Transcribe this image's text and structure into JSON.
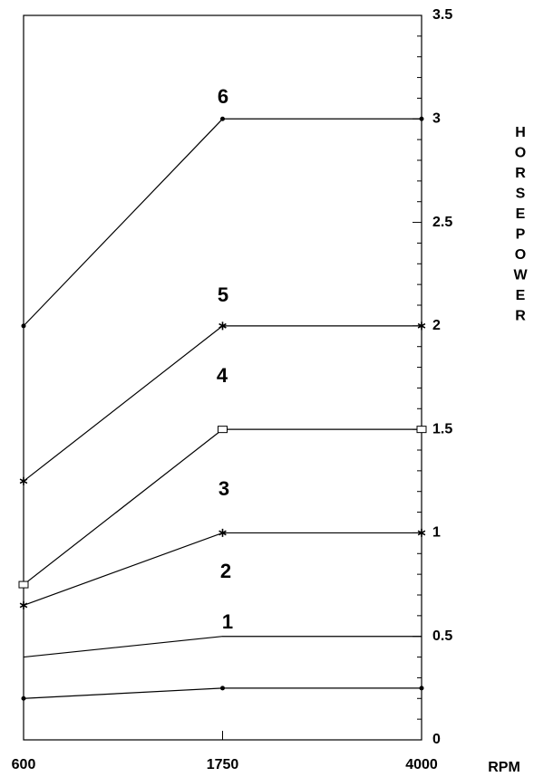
{
  "chart_data": {
    "type": "line",
    "x_label": "RPM",
    "y_label": "HORSEPOWER",
    "categories": [
      "600",
      "1750",
      "4000"
    ],
    "ylim": [
      0,
      3.5
    ],
    "yticks": [
      0,
      0.5,
      1,
      1.5,
      2,
      2.5,
      3,
      3.5
    ],
    "color": "#000000",
    "series": [
      {
        "marker": "dot",
        "values": [
          0.2,
          0.25,
          0.25
        ]
      },
      {
        "marker": "none",
        "values": [
          0.4,
          0.5,
          0.5
        ]
      },
      {
        "marker": "star",
        "values": [
          0.65,
          1,
          1
        ]
      },
      {
        "marker": "square",
        "values": [
          0.75,
          1.5,
          1.5
        ]
      },
      {
        "marker": "star",
        "values": [
          1.25,
          2,
          2
        ]
      },
      {
        "marker": "dot",
        "values": [
          2,
          3,
          3
        ]
      }
    ],
    "annotations": [
      "1",
      "2",
      "3",
      "4",
      "5",
      "6"
    ]
  }
}
